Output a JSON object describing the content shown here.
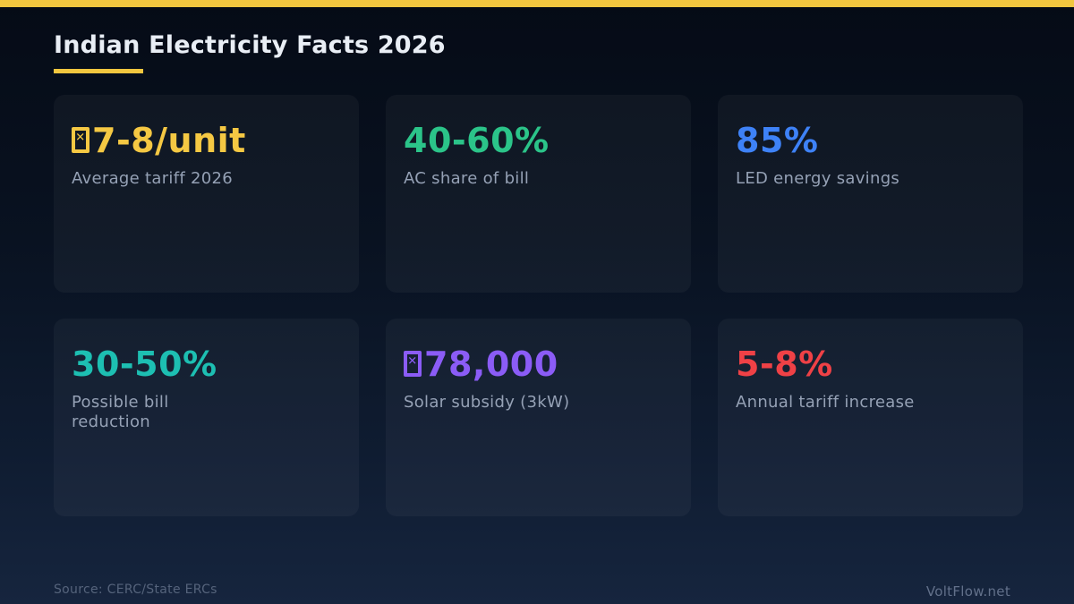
{
  "accent": {
    "bar_color": "#f2c63f",
    "underline_color": "#f2c63f"
  },
  "header": {
    "title": "Indian Electricity Facts 2026"
  },
  "chart_data": {
    "type": "table",
    "title": "Indian Electricity Facts 2026",
    "stats": [
      {
        "value": "₹7-8/unit",
        "label": "Average tariff 2026",
        "color": "#f5c843"
      },
      {
        "value": "40-60%",
        "label": "AC share of bill",
        "color": "#2bc489"
      },
      {
        "value": "85%",
        "label": "LED energy savings",
        "color": "#3e82f7"
      },
      {
        "value": "30-50%",
        "label": "Possible bill reduction",
        "color": "#1dbfb2"
      },
      {
        "value": "₹78,000",
        "label": "Solar subsidy (3kW)",
        "color": "#8b5cf6"
      },
      {
        "value": "5-8%",
        "label": "Annual tariff increase",
        "color": "#ef4146"
      }
    ]
  },
  "cards": [
    {
      "value": "7-8/unit",
      "rupee": true,
      "label": "Average tariff 2026",
      "color": "#f5c843"
    },
    {
      "value": "40-60%",
      "rupee": false,
      "label": "AC share of bill",
      "color": "#2bc489"
    },
    {
      "value": "85%",
      "rupee": false,
      "label": "LED energy savings",
      "color": "#3e82f7"
    },
    {
      "value": "30-50%",
      "rupee": false,
      "label": "Possible bill\nreduction",
      "color": "#1dbfb2"
    },
    {
      "value": "78,000",
      "rupee": true,
      "label": "Solar subsidy (3kW)",
      "color": "#8b5cf6"
    },
    {
      "value": "5-8%",
      "rupee": false,
      "label": "Annual tariff increase",
      "color": "#ef4146"
    }
  ],
  "icons": {
    "missing_glyph_x": "✕"
  },
  "footer": {
    "source": "Source: CERC/State ERCs",
    "brand": "VoltFlow.net"
  }
}
